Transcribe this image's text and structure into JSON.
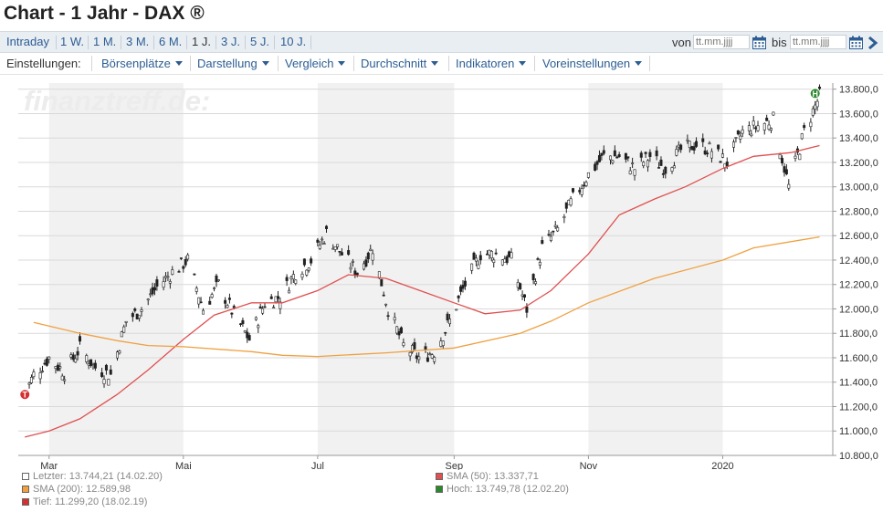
{
  "page": {
    "title": "Chart - 1 Jahr - DAX ®"
  },
  "range_bar": {
    "periods": [
      "Intraday",
      "1 W.",
      "1 M.",
      "3 M.",
      "6 M.",
      "1 J.",
      "3 J.",
      "5 J.",
      "10 J."
    ],
    "active_index": 5,
    "from_label": "von",
    "to_label": "bis",
    "date_placeholder": "tt.mm.jjjj"
  },
  "settings_bar": {
    "label": "Einstellungen:",
    "menus": [
      "Börsenplätze",
      "Darstellung",
      "Vergleich",
      "Durchschnitt",
      "Indikatoren",
      "Voreinstellungen"
    ]
  },
  "colors": {
    "link": "#2c5d93",
    "sma50": "#e05050",
    "sma200": "#f0a040",
    "high_marker": "#2a8a2a",
    "low_marker": "#d43030",
    "band": "#f1f1f1"
  },
  "chart_data": {
    "type": "candlestick",
    "watermark": "finanztreff.de:",
    "y_ticks": [
      "10.800,0",
      "11.000,0",
      "11.200,0",
      "11.400,0",
      "11.600,0",
      "11.800,0",
      "12.000,0",
      "12.200,0",
      "12.400,0",
      "12.600,0",
      "12.800,0",
      "13.000,0",
      "13.200,0",
      "13.400,0",
      "13.600,0",
      "13.800,0"
    ],
    "ylim": [
      10800,
      13850
    ],
    "x_ticks": [
      {
        "label": "Mar",
        "date": "2019-03-01"
      },
      {
        "label": "Mai",
        "date": "2019-05-01"
      },
      {
        "label": "Jul",
        "date": "2019-07-01"
      },
      {
        "label": "Sep",
        "date": "2019-09-01"
      },
      {
        "label": "Nov",
        "date": "2019-11-01"
      },
      {
        "label": "2020",
        "date": "2020-01-01"
      }
    ],
    "xlim": [
      "2019-02-15",
      "2020-02-20"
    ],
    "shaded_bands": [
      {
        "from": "2019-03-01",
        "to": "2019-05-01"
      },
      {
        "from": "2019-07-01",
        "to": "2019-09-01"
      },
      {
        "from": "2019-11-01",
        "to": "2020-01-01"
      }
    ],
    "close_path": [
      [
        "2019-02-18",
        11300
      ],
      [
        "2019-02-22",
        11460
      ],
      [
        "2019-03-01",
        11600
      ],
      [
        "2019-03-08",
        11480
      ],
      [
        "2019-03-15",
        11680
      ],
      [
        "2019-03-22",
        11520
      ],
      [
        "2019-03-29",
        11460
      ],
      [
        "2019-04-05",
        11900
      ],
      [
        "2019-04-12",
        12000
      ],
      [
        "2019-04-19",
        12180
      ],
      [
        "2019-04-26",
        12300
      ],
      [
        "2019-05-03",
        12400
      ],
      [
        "2019-05-10",
        12000
      ],
      [
        "2019-05-17",
        12200
      ],
      [
        "2019-05-24",
        11950
      ],
      [
        "2019-05-31",
        11750
      ],
      [
        "2019-06-07",
        12050
      ],
      [
        "2019-06-14",
        12100
      ],
      [
        "2019-06-21",
        12300
      ],
      [
        "2019-06-28",
        12400
      ],
      [
        "2019-07-05",
        12620
      ],
      [
        "2019-07-12",
        12450
      ],
      [
        "2019-07-19",
        12300
      ],
      [
        "2019-07-26",
        12500
      ],
      [
        "2019-08-02",
        12000
      ],
      [
        "2019-08-09",
        11700
      ],
      [
        "2019-08-16",
        11600
      ],
      [
        "2019-08-23",
        11650
      ],
      [
        "2019-08-30",
        11900
      ],
      [
        "2019-09-06",
        12200
      ],
      [
        "2019-09-13",
        12450
      ],
      [
        "2019-09-20",
        12450
      ],
      [
        "2019-09-27",
        12400
      ],
      [
        "2019-10-04",
        12000
      ],
      [
        "2019-10-11",
        12500
      ],
      [
        "2019-10-18",
        12650
      ],
      [
        "2019-10-25",
        12900
      ],
      [
        "2019-11-01",
        13100
      ],
      [
        "2019-11-08",
        13250
      ],
      [
        "2019-11-15",
        13250
      ],
      [
        "2019-11-22",
        13150
      ],
      [
        "2019-11-29",
        13250
      ],
      [
        "2019-12-06",
        13150
      ],
      [
        "2019-12-13",
        13300
      ],
      [
        "2019-12-20",
        13350
      ],
      [
        "2019-12-27",
        13300
      ],
      [
        "2020-01-03",
        13200
      ],
      [
        "2020-01-10",
        13450
      ],
      [
        "2020-01-17",
        13500
      ],
      [
        "2020-01-24",
        13550
      ],
      [
        "2020-01-31",
        13000
      ],
      [
        "2020-02-07",
        13450
      ],
      [
        "2020-02-14",
        13744
      ]
    ],
    "series": [
      {
        "name": "SMA (50)",
        "color": "#e05050",
        "points": [
          [
            "2019-02-18",
            10950
          ],
          [
            "2019-03-01",
            11000
          ],
          [
            "2019-03-15",
            11100
          ],
          [
            "2019-04-01",
            11300
          ],
          [
            "2019-04-15",
            11500
          ],
          [
            "2019-05-01",
            11750
          ],
          [
            "2019-05-15",
            11950
          ],
          [
            "2019-06-01",
            12050
          ],
          [
            "2019-06-15",
            12050
          ],
          [
            "2019-07-01",
            12150
          ],
          [
            "2019-07-15",
            12280
          ],
          [
            "2019-08-01",
            12250
          ],
          [
            "2019-08-15",
            12160
          ],
          [
            "2019-09-01",
            12050
          ],
          [
            "2019-09-15",
            11960
          ],
          [
            "2019-10-01",
            11990
          ],
          [
            "2019-10-15",
            12150
          ],
          [
            "2019-11-01",
            12450
          ],
          [
            "2019-11-15",
            12770
          ],
          [
            "2019-12-01",
            12900
          ],
          [
            "2019-12-15",
            13000
          ],
          [
            "2020-01-01",
            13150
          ],
          [
            "2020-01-15",
            13250
          ],
          [
            "2020-02-01",
            13280
          ],
          [
            "2020-02-14",
            13338
          ]
        ]
      },
      {
        "name": "SMA (200)",
        "color": "#f0a040",
        "points": [
          [
            "2019-02-22",
            11890
          ],
          [
            "2019-03-15",
            11800
          ],
          [
            "2019-04-01",
            11740
          ],
          [
            "2019-04-15",
            11700
          ],
          [
            "2019-05-01",
            11690
          ],
          [
            "2019-06-01",
            11650
          ],
          [
            "2019-06-15",
            11620
          ],
          [
            "2019-07-01",
            11610
          ],
          [
            "2019-08-01",
            11640
          ],
          [
            "2019-09-01",
            11680
          ],
          [
            "2019-10-01",
            11800
          ],
          [
            "2019-10-15",
            11900
          ],
          [
            "2019-11-01",
            12050
          ],
          [
            "2019-12-01",
            12250
          ],
          [
            "2020-01-01",
            12400
          ],
          [
            "2020-01-15",
            12500
          ],
          [
            "2020-02-14",
            12590
          ]
        ]
      }
    ],
    "markers": [
      {
        "label": "H",
        "date": "2020-02-12",
        "value": 13750,
        "color": "#2a8a2a"
      },
      {
        "label": "T",
        "date": "2019-02-18",
        "value": 11299,
        "color": "#d43030"
      }
    ],
    "legend": [
      {
        "text": "Letzter: 13.744,21 (14.02.20)",
        "color": "#ffffff"
      },
      {
        "text": "SMA (200): 12.589,98",
        "color": "#f0a040"
      },
      {
        "text": "Tief: 11.299,20 (18.02.19)",
        "color": "#d43030"
      },
      {
        "text": "SMA (50): 13.337,71",
        "color": "#e05050"
      },
      {
        "text": "Hoch: 13.749,78 (12.02.20)",
        "color": "#2a8a2a"
      }
    ]
  }
}
